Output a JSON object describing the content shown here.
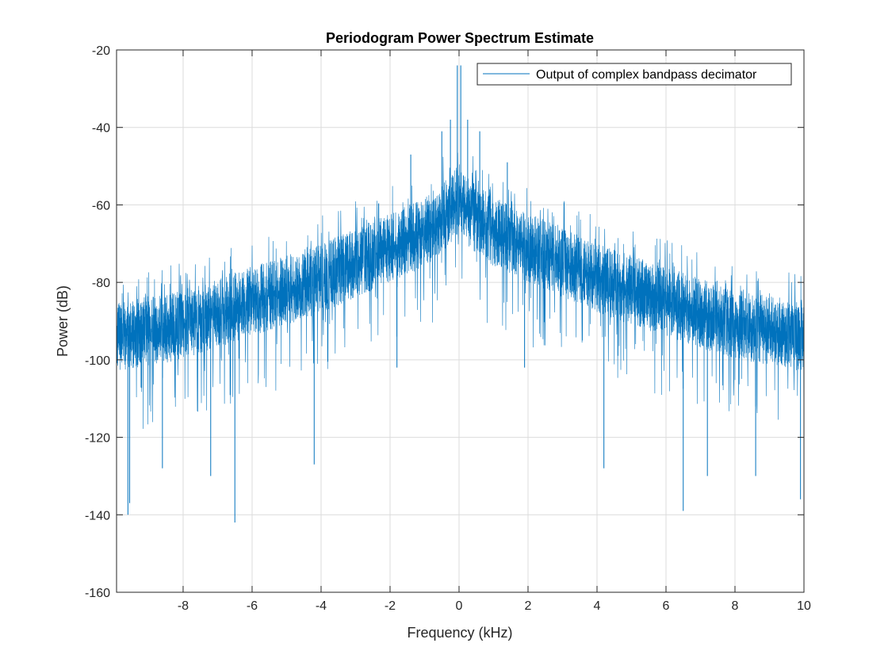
{
  "chart_data": {
    "type": "line",
    "title": "Periodogram Power Spectrum Estimate",
    "xlabel": "Frequency (kHz)",
    "ylabel": "Power (dB)",
    "xlim": [
      -9.93,
      10
    ],
    "ylim": [
      -160,
      -20
    ],
    "xticks": [
      -8,
      -6,
      -4,
      -2,
      0,
      2,
      4,
      6,
      8,
      10
    ],
    "yticks": [
      -20,
      -40,
      -60,
      -80,
      -100,
      -120,
      -140,
      -160
    ],
    "grid": true,
    "legend": {
      "placement": "top-right",
      "entries": [
        "Output of complex bandpass decimator"
      ]
    },
    "series": [
      {
        "name": "Output of complex bandpass decimator",
        "color": "#0072BD",
        "envelope_freq_khz": [
          -10,
          -8,
          -6,
          -4,
          -2,
          -1,
          -0.3,
          0,
          0.3,
          1,
          2,
          4,
          6,
          8,
          10
        ],
        "envelope_median_db": [
          -94,
          -91,
          -85,
          -79,
          -71,
          -67,
          -62,
          -58,
          -62,
          -67,
          -71,
          -79,
          -85,
          -91,
          -94
        ],
        "noise_spread_db": 9,
        "peaks": [
          {
            "f": -0.05,
            "db": -24
          },
          {
            "f": 0.05,
            "db": -24
          },
          {
            "f": -0.25,
            "db": -38
          },
          {
            "f": 0.25,
            "db": -38
          },
          {
            "f": -0.5,
            "db": -41
          },
          {
            "f": 0.6,
            "db": -41
          },
          {
            "f": -1.4,
            "db": -47
          },
          {
            "f": 1.4,
            "db": -49
          }
        ],
        "dips": [
          {
            "f": -9.6,
            "db": -140
          },
          {
            "f": -9.55,
            "db": -137
          },
          {
            "f": -6.5,
            "db": -142
          },
          {
            "f": -7.2,
            "db": -130
          },
          {
            "f": -4.2,
            "db": -127
          },
          {
            "f": 4.2,
            "db": -128
          },
          {
            "f": 6.5,
            "db": -139
          },
          {
            "f": 9.9,
            "db": -136
          },
          {
            "f": 7.2,
            "db": -130
          },
          {
            "f": -8.6,
            "db": -128
          },
          {
            "f": 8.6,
            "db": -130
          },
          {
            "f": -1.8,
            "db": -102
          },
          {
            "f": 1.9,
            "db": -102
          }
        ]
      }
    ]
  }
}
